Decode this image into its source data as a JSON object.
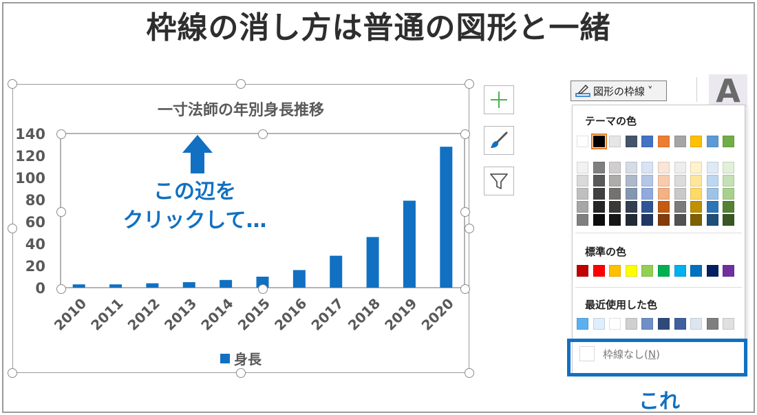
{
  "headline": "枠線の消し方は普通の図形と一緒",
  "chart_data": {
    "type": "bar",
    "title": "一寸法師の年別身長推移",
    "categories": [
      "2010",
      "2011",
      "2012",
      "2013",
      "2014",
      "2015",
      "2016",
      "2017",
      "2018",
      "2019",
      "2020"
    ],
    "series": [
      {
        "name": "身長",
        "values": [
          3,
          3,
          4,
          5,
          7,
          10,
          16,
          29,
          46,
          79,
          128
        ],
        "color": "#1170c2"
      }
    ],
    "yticks": [
      "0",
      "20",
      "40",
      "60",
      "80",
      "100",
      "120",
      "140"
    ],
    "ylim": [
      0,
      140
    ],
    "grid": false,
    "legend": "bottom"
  },
  "overlay": {
    "line1": "この辺を",
    "line2": "クリックして…",
    "arrow_icon": "up-arrow-icon",
    "color": "#1170c2"
  },
  "chart_tools": [
    {
      "name": "chart-elements-button",
      "icon": "plus-icon"
    },
    {
      "name": "chart-styles-button",
      "icon": "brush-icon"
    },
    {
      "name": "chart-filters-button",
      "icon": "filter-icon"
    }
  ],
  "ribbon": {
    "outline_button_label": "図形の枠線",
    "outline_button_chevron": "˅",
    "text_style_letter": "A"
  },
  "dropdown": {
    "theme_colors_label": "テーマの色",
    "standard_colors_label": "標準の色",
    "recent_colors_label": "最近使用した色",
    "no_outline_label": "枠線なし(",
    "no_outline_key": "N",
    "no_outline_label_end": ")",
    "theme_colors": [
      "#ffffff",
      "#000000",
      "#e7e6e6",
      "#44546a",
      "#4472c4",
      "#ed7d31",
      "#a5a5a5",
      "#ffc000",
      "#5b9bd5",
      "#70ad47"
    ],
    "theme_shades": [
      [
        "#f2f2f2",
        "#d9d9d9",
        "#bfbfbf",
        "#a6a6a6",
        "#7f7f7f"
      ],
      [
        "#7f7f7f",
        "#595959",
        "#404040",
        "#262626",
        "#0d0d0d"
      ],
      [
        "#d0cece",
        "#aeabab",
        "#757171",
        "#3a3838",
        "#171616"
      ],
      [
        "#d6dce5",
        "#adb9ca",
        "#8497b0",
        "#333f50",
        "#222a35"
      ],
      [
        "#dae3f3",
        "#b4c7e7",
        "#8faadc",
        "#2f5597",
        "#203864"
      ],
      [
        "#fbe5d6",
        "#f8cbad",
        "#f4b183",
        "#c55a11",
        "#843c0c"
      ],
      [
        "#ededed",
        "#dbdbdb",
        "#c9c9c9",
        "#7b7b7b",
        "#525252"
      ],
      [
        "#fff2cc",
        "#ffe699",
        "#ffd966",
        "#bf9000",
        "#7f6000"
      ],
      [
        "#deebf7",
        "#bdd7ee",
        "#9dc3e6",
        "#2e75b6",
        "#1f4e79"
      ],
      [
        "#e2f0d9",
        "#c5e0b4",
        "#a9d18e",
        "#548235",
        "#385723"
      ]
    ],
    "standard_colors": [
      "#c00000",
      "#ff0000",
      "#ffc000",
      "#ffff00",
      "#92d050",
      "#00b050",
      "#00b0f0",
      "#0070c0",
      "#002060",
      "#7030a0"
    ],
    "recent_colors": [
      "#5bb0f0",
      "#ddeeff",
      "#ffffff",
      "#d0d0d0",
      "#6f8fc8",
      "#2f4a7a",
      "#3f5f9f",
      "#dde6f0",
      "#7f7f7f",
      "#e0e0e0"
    ]
  },
  "callout": "これ"
}
